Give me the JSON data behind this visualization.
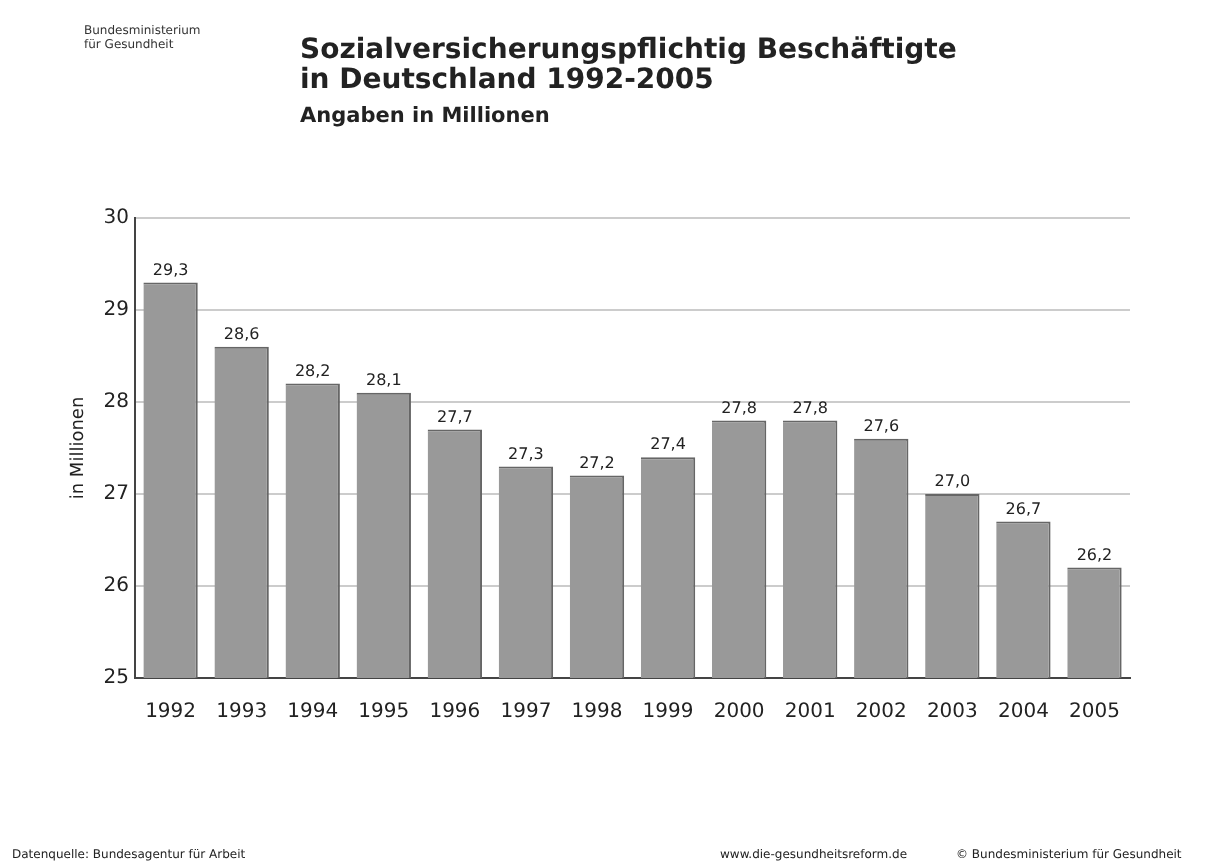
{
  "chart_data": {
    "type": "bar",
    "title": "Sozialversicherungspflichtig Beschäftigte\nin Deutschland 1992-2005",
    "subtitle": "Angaben in Millionen",
    "ylabel": "in Millionen",
    "categories": [
      "1992",
      "1993",
      "1994",
      "1995",
      "1996",
      "1997",
      "1998",
      "1999",
      "2000",
      "2001",
      "2002",
      "2003",
      "2004",
      "2005"
    ],
    "values": [
      29.3,
      28.6,
      28.2,
      28.1,
      27.7,
      27.3,
      27.2,
      27.4,
      27.8,
      27.8,
      27.6,
      27.0,
      26.7,
      26.2
    ],
    "value_labels": [
      "29,3",
      "28,6",
      "28,2",
      "28,1",
      "27,7",
      "27,3",
      "27,2",
      "27,4",
      "27,8",
      "27,8",
      "27,6",
      "27,0",
      "26,7",
      "26,2"
    ],
    "color": "#999999",
    "ylim": [
      25,
      30
    ],
    "yticks": [
      25,
      26,
      27,
      28,
      29,
      30
    ],
    "grid": "y",
    "annotations": [
      "Bundesministerium\nfür Gesundheit",
      "Datenquelle: Bundesagentur für Arbeit",
      "www.die-gesundheitsreform.de",
      "© Bundesministerium für Gesundheit"
    ]
  }
}
